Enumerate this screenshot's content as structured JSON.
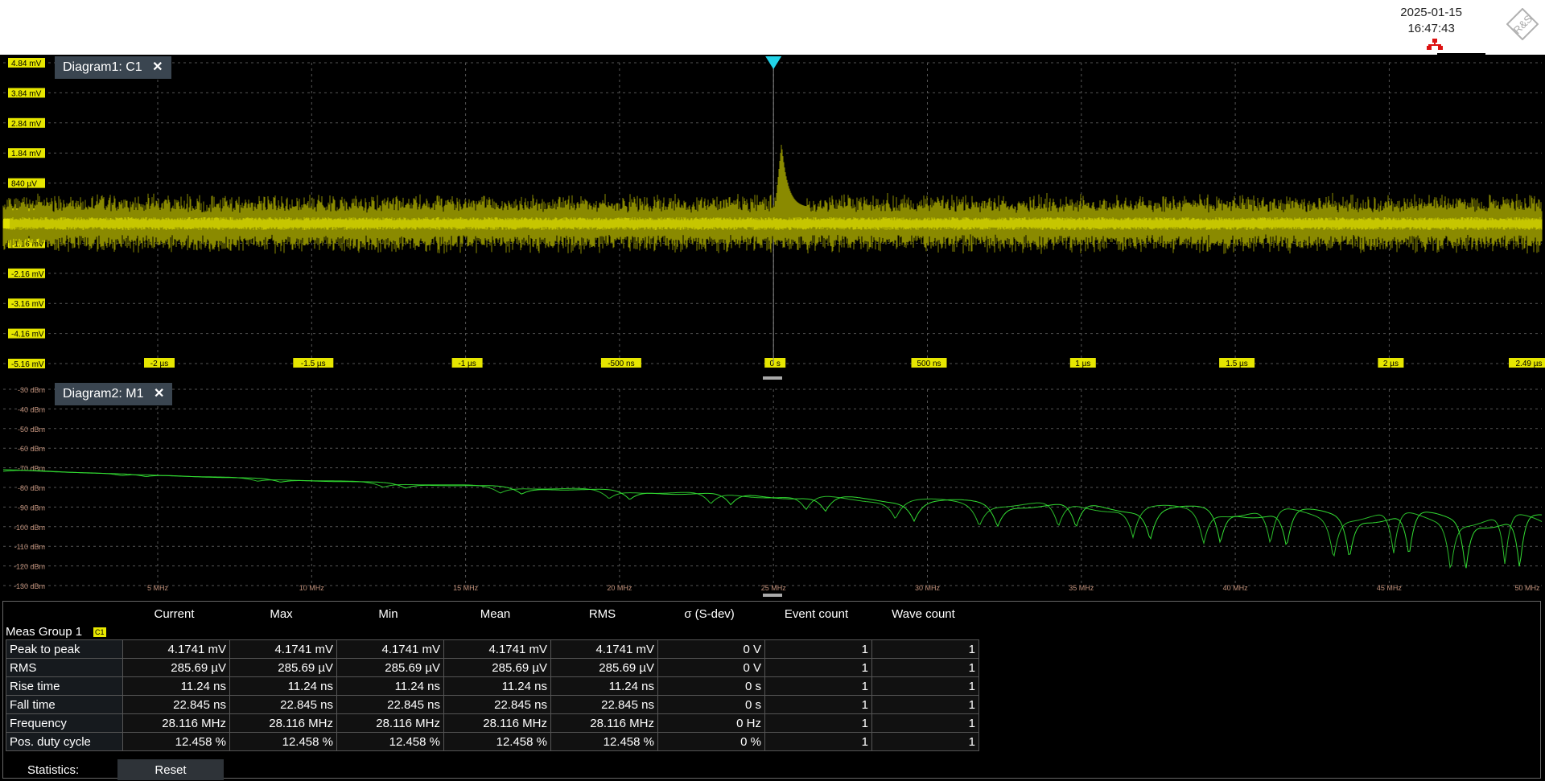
{
  "status": {
    "date": "2025-01-15",
    "time": "16:47:43",
    "logo_text": "R&S"
  },
  "diagram1": {
    "tab_label": "Diagram1: C1",
    "close_symbol": "✕",
    "trace_color": "#e0e000",
    "y_labels": [
      "4.84 mV",
      "3.84 mV",
      "2.84 mV",
      "1.84 mV",
      "840 µV",
      "-160 µV",
      "-1.16 mV",
      "-2.16 mV",
      "-3.16 mV",
      "-4.16 mV",
      "-5.16 mV"
    ],
    "x_labels": [
      "-2 µs",
      "-1.5 µs",
      "-1 µs",
      "-500 ns",
      "0 s",
      "500 ns",
      "1 µs",
      "1.5 µs",
      "2 µs",
      "2.49 µs"
    ]
  },
  "diagram2": {
    "tab_label": "Diagram2: M1",
    "close_symbol": "✕",
    "trace_color": "#33dd33",
    "y_labels": [
      "-30 dBm",
      "-40 dBm",
      "-50 dBm",
      "-60 dBm",
      "-70 dBm",
      "-80 dBm",
      "-90 dBm",
      "-100 dBm",
      "-110 dBm",
      "-120 dBm",
      "-130 dBm"
    ],
    "x_labels": [
      "5 MHz",
      "10 MHz",
      "15 MHz",
      "20 MHz",
      "25 MHz",
      "30 MHz",
      "35 MHz",
      "40 MHz",
      "45 MHz",
      "50 MHz"
    ]
  },
  "measurements": {
    "columns": [
      "Current",
      "Max",
      "Min",
      "Mean",
      "RMS",
      "σ (S-dev)",
      "Event count",
      "Wave count"
    ],
    "group_name": "Meas Group 1",
    "group_badge": "C1",
    "rows": [
      {
        "name": "Peak to peak",
        "values": [
          "4.1741 mV",
          "4.1741 mV",
          "4.1741 mV",
          "4.1741 mV",
          "4.1741 mV",
          "0 V",
          "1",
          "1"
        ]
      },
      {
        "name": "RMS",
        "values": [
          "285.69 µV",
          "285.69 µV",
          "285.69 µV",
          "285.69 µV",
          "285.69 µV",
          "0 V",
          "1",
          "1"
        ]
      },
      {
        "name": "Rise time",
        "values": [
          "11.24 ns",
          "11.24 ns",
          "11.24 ns",
          "11.24 ns",
          "11.24 ns",
          "0 s",
          "1",
          "1"
        ]
      },
      {
        "name": "Fall time",
        "values": [
          "22.845 ns",
          "22.845 ns",
          "22.845 ns",
          "22.845 ns",
          "22.845 ns",
          "0 s",
          "1",
          "1"
        ]
      },
      {
        "name": "Frequency",
        "values": [
          "28.116 MHz",
          "28.116 MHz",
          "28.116 MHz",
          "28.116 MHz",
          "28.116 MHz",
          "0 Hz",
          "1",
          "1"
        ]
      },
      {
        "name": "Pos. duty cycle",
        "values": [
          "12.458 %",
          "12.458 %",
          "12.458 %",
          "12.458 %",
          "12.458 %",
          "0 %",
          "1",
          "1"
        ]
      }
    ],
    "statistics_label": "Statistics:",
    "reset_label": "Reset"
  }
}
